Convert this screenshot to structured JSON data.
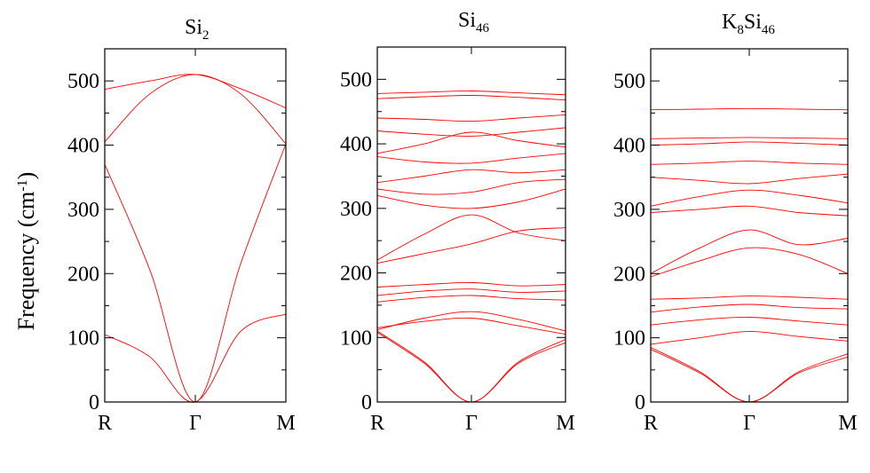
{
  "chart_data": {
    "type": "line",
    "ylabel": {
      "main": "Frequency (cm",
      "sup": "-1",
      "close": ")"
    },
    "ylim": [
      0,
      550
    ],
    "yticks": [
      "0",
      "100",
      "200",
      "300",
      "400",
      "500"
    ],
    "xticks": [
      "R",
      "Γ",
      "M"
    ],
    "line_color": "#ff0000",
    "panels": [
      {
        "title": {
          "a": "Si",
          "a_sub": "2",
          "b": "",
          "b_sub": ""
        },
        "series": [
          {
            "values": [
              [
                0,
                105
              ],
              [
                0.25,
                70
              ],
              [
                0.5,
                0
              ],
              [
                0.75,
                110
              ],
              [
                1,
                137
              ]
            ]
          },
          {
            "values": [
              [
                0,
                370
              ],
              [
                0.25,
                205
              ],
              [
                0.5,
                0
              ],
              [
                0.75,
                215
              ],
              [
                1,
                402
              ]
            ]
          },
          {
            "values": [
              [
                0,
                405
              ],
              [
                0.25,
                480
              ],
              [
                0.5,
                510
              ],
              [
                0.75,
                480
              ],
              [
                1,
                402
              ]
            ]
          },
          {
            "values": [
              [
                0,
                487
              ],
              [
                0.25,
                500
              ],
              [
                0.5,
                510
              ],
              [
                0.75,
                488
              ],
              [
                1,
                458
              ]
            ]
          }
        ]
      },
      {
        "title": {
          "a": "Si",
          "a_sub": "46",
          "b": "",
          "b_sub": ""
        },
        "series": [
          {
            "values": [
              [
                0,
                108
              ],
              [
                0.25,
                60
              ],
              [
                0.5,
                0
              ],
              [
                0.75,
                60
              ],
              [
                1,
                92
              ]
            ]
          },
          {
            "values": [
              [
                0,
                110
              ],
              [
                0.25,
                62
              ],
              [
                0.5,
                0
              ],
              [
                0.75,
                62
              ],
              [
                1,
                97
              ]
            ]
          },
          {
            "values": [
              [
                0,
                112
              ],
              [
                0.25,
                130
              ],
              [
                0.5,
                140
              ],
              [
                0.75,
                128
              ],
              [
                1,
                110
              ]
            ]
          },
          {
            "values": [
              [
                0,
                115
              ],
              [
                0.25,
                125
              ],
              [
                0.5,
                130
              ],
              [
                0.75,
                118
              ],
              [
                1,
                105
              ]
            ]
          },
          {
            "values": [
              [
                0,
                155
              ],
              [
                0.25,
                162
              ],
              [
                0.5,
                165
              ],
              [
                0.75,
                160
              ],
              [
                1,
                158
              ]
            ]
          },
          {
            "values": [
              [
                0,
                165
              ],
              [
                0.25,
                172
              ],
              [
                0.5,
                175
              ],
              [
                0.75,
                170
              ],
              [
                1,
                172
              ]
            ]
          },
          {
            "values": [
              [
                0,
                178
              ],
              [
                0.25,
                182
              ],
              [
                0.5,
                185
              ],
              [
                0.75,
                180
              ],
              [
                1,
                182
              ]
            ]
          },
          {
            "values": [
              [
                0,
                215
              ],
              [
                0.25,
                230
              ],
              [
                0.5,
                245
              ],
              [
                0.75,
                265
              ],
              [
                1,
                270
              ]
            ]
          },
          {
            "values": [
              [
                0,
                220
              ],
              [
                0.25,
                260
              ],
              [
                0.5,
                290
              ],
              [
                0.75,
                262
              ],
              [
                1,
                250
              ]
            ]
          },
          {
            "values": [
              [
                0,
                320
              ],
              [
                0.25,
                305
              ],
              [
                0.5,
                300
              ],
              [
                0.75,
                310
              ],
              [
                1,
                330
              ]
            ]
          },
          {
            "values": [
              [
                0,
                330
              ],
              [
                0.25,
                322
              ],
              [
                0.5,
                325
              ],
              [
                0.75,
                340
              ],
              [
                1,
                345
              ]
            ]
          },
          {
            "values": [
              [
                0,
                340
              ],
              [
                0.25,
                350
              ],
              [
                0.5,
                360
              ],
              [
                0.75,
                355
              ],
              [
                1,
                360
              ]
            ]
          },
          {
            "values": [
              [
                0,
                380
              ],
              [
                0.25,
                372
              ],
              [
                0.5,
                370
              ],
              [
                0.75,
                378
              ],
              [
                1,
                385
              ]
            ]
          },
          {
            "values": [
              [
                0,
                385
              ],
              [
                0.25,
                400
              ],
              [
                0.5,
                418
              ],
              [
                0.75,
                405
              ],
              [
                1,
                395
              ]
            ]
          },
          {
            "values": [
              [
                0,
                420
              ],
              [
                0.25,
                415
              ],
              [
                0.5,
                412
              ],
              [
                0.75,
                418
              ],
              [
                1,
                425
              ]
            ]
          },
          {
            "values": [
              [
                0,
                440
              ],
              [
                0.25,
                438
              ],
              [
                0.5,
                435
              ],
              [
                0.75,
                440
              ],
              [
                1,
                445
              ]
            ]
          },
          {
            "values": [
              [
                0,
                470
              ],
              [
                0.25,
                473
              ],
              [
                0.5,
                475
              ],
              [
                0.75,
                472
              ],
              [
                1,
                468
              ]
            ]
          },
          {
            "values": [
              [
                0,
                478
              ],
              [
                0.25,
                480
              ],
              [
                0.5,
                482
              ],
              [
                0.75,
                479
              ],
              [
                1,
                476
              ]
            ]
          }
        ]
      },
      {
        "title": {
          "a": "K",
          "a_sub": "8",
          "b": "Si",
          "b_sub": "46"
        },
        "series": [
          {
            "values": [
              [
                0,
                82
              ],
              [
                0.25,
                45
              ],
              [
                0.5,
                0
              ],
              [
                0.75,
                45
              ],
              [
                1,
                70
              ]
            ]
          },
          {
            "values": [
              [
                0,
                85
              ],
              [
                0.25,
                47
              ],
              [
                0.5,
                0
              ],
              [
                0.75,
                47
              ],
              [
                1,
                75
              ]
            ]
          },
          {
            "values": [
              [
                0,
                90
              ],
              [
                0.25,
                100
              ],
              [
                0.5,
                110
              ],
              [
                0.75,
                102
              ],
              [
                1,
                95
              ]
            ]
          },
          {
            "values": [
              [
                0,
                120
              ],
              [
                0.25,
                128
              ],
              [
                0.5,
                132
              ],
              [
                0.75,
                126
              ],
              [
                1,
                120
              ]
            ]
          },
          {
            "values": [
              [
                0,
                140
              ],
              [
                0.25,
                148
              ],
              [
                0.5,
                152
              ],
              [
                0.75,
                147
              ],
              [
                1,
                145
              ]
            ]
          },
          {
            "values": [
              [
                0,
                160
              ],
              [
                0.25,
                162
              ],
              [
                0.5,
                165
              ],
              [
                0.75,
                163
              ],
              [
                1,
                160
              ]
            ]
          },
          {
            "values": [
              [
                0,
                195
              ],
              [
                0.25,
                220
              ],
              [
                0.5,
                240
              ],
              [
                0.75,
                230
              ],
              [
                1,
                200
              ]
            ]
          },
          {
            "values": [
              [
                0,
                200
              ],
              [
                0.25,
                240
              ],
              [
                0.5,
                268
              ],
              [
                0.75,
                245
              ],
              [
                1,
                255
              ]
            ]
          },
          {
            "values": [
              [
                0,
                295
              ],
              [
                0.25,
                300
              ],
              [
                0.5,
                305
              ],
              [
                0.75,
                295
              ],
              [
                1,
                290
              ]
            ]
          },
          {
            "values": [
              [
                0,
                305
              ],
              [
                0.25,
                320
              ],
              [
                0.5,
                330
              ],
              [
                0.75,
                322
              ],
              [
                1,
                310
              ]
            ]
          },
          {
            "values": [
              [
                0,
                350
              ],
              [
                0.25,
                345
              ],
              [
                0.5,
                340
              ],
              [
                0.75,
                348
              ],
              [
                1,
                355
              ]
            ]
          },
          {
            "values": [
              [
                0,
                370
              ],
              [
                0.25,
                372
              ],
              [
                0.5,
                375
              ],
              [
                0.75,
                372
              ],
              [
                1,
                370
              ]
            ]
          },
          {
            "values": [
              [
                0,
                400
              ],
              [
                0.25,
                402
              ],
              [
                0.5,
                405
              ],
              [
                0.75,
                403
              ],
              [
                1,
                400
              ]
            ]
          },
          {
            "values": [
              [
                0,
                410
              ],
              [
                0.25,
                411
              ],
              [
                0.5,
                412
              ],
              [
                0.75,
                411
              ],
              [
                1,
                410
              ]
            ]
          },
          {
            "values": [
              [
                0,
                455
              ],
              [
                0.25,
                456
              ],
              [
                0.5,
                457
              ],
              [
                0.75,
                456
              ],
              [
                1,
                455
              ]
            ]
          }
        ]
      }
    ]
  }
}
